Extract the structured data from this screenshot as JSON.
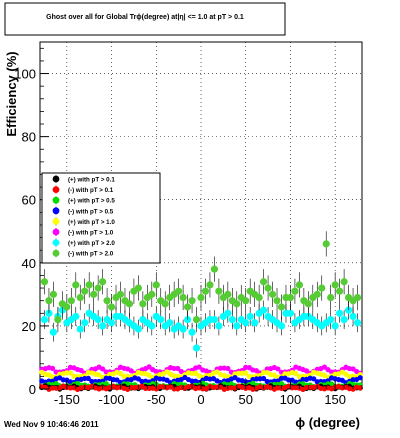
{
  "chart_data": {
    "type": "scatter",
    "title": "Ghost over all for Global Trϕ(degree) at|η| <= 1.0 at pT > 0.1",
    "xlabel": "ϕ (degree)",
    "ylabel": "Efficiency (%)",
    "xlim": [
      -180,
      180
    ],
    "ylim": [
      0,
      110
    ],
    "xticks": [
      -150,
      -100,
      -50,
      0,
      50,
      100,
      150
    ],
    "xtick_labels": [
      "-150",
      "-100",
      "-50",
      "0",
      "50",
      "100",
      "150"
    ],
    "yticks": [
      0,
      20,
      40,
      60,
      80,
      100
    ],
    "ytick_labels": [
      "0",
      "20",
      "40",
      "60",
      "80",
      "100"
    ],
    "grid": true,
    "legend_position": "middle-left",
    "series": [
      {
        "name": "(+) with pT > 0.1",
        "color": "#000000"
      },
      {
        "name": "(-) with pT > 0.1",
        "color": "#ff0000"
      },
      {
        "name": "(+) with pT > 0.5",
        "color": "#00dd00"
      },
      {
        "name": "(-) with pT > 0.5",
        "color": "#0000ff"
      },
      {
        "name": "(+) with pT > 1.0",
        "color": "#ffff00"
      },
      {
        "name": "(-) with pT > 1.0",
        "color": "#ff00ff"
      },
      {
        "name": "(+) with pT > 2.0",
        "color": "#00ffff"
      },
      {
        "name": "(-) with pT > 2.0",
        "color": "#55cc33"
      }
    ],
    "bands": [
      {
        "series": 5,
        "base": 6.0,
        "amp": 0.8
      },
      {
        "series": 4,
        "base": 4.5,
        "amp": 0.7
      },
      {
        "series": 3,
        "base": 2.8,
        "amp": 0.6
      },
      {
        "series": 2,
        "base": 1.2,
        "amp": 0.4
      },
      {
        "series": 0,
        "base": 0.5,
        "amp": 0.3
      },
      {
        "series": 1,
        "base": 0.4,
        "amp": 0.3
      }
    ],
    "cyan_x": [
      -175,
      -170,
      -165,
      -160,
      -155,
      -150,
      -145,
      -140,
      -135,
      -130,
      -125,
      -120,
      -115,
      -110,
      -105,
      -100,
      -95,
      -90,
      -85,
      -80,
      -75,
      -70,
      -65,
      -60,
      -55,
      -50,
      -45,
      -40,
      -35,
      -30,
      -25,
      -20,
      -15,
      -10,
      -5,
      0,
      5,
      10,
      15,
      20,
      25,
      30,
      35,
      40,
      45,
      50,
      55,
      60,
      65,
      70,
      75,
      80,
      85,
      90,
      95,
      100,
      105,
      110,
      115,
      120,
      125,
      130,
      135,
      140,
      145,
      150,
      155,
      160,
      165,
      170,
      175
    ],
    "cyan_y": [
      22,
      24,
      18,
      23,
      25,
      21,
      22,
      23,
      19,
      21,
      24,
      23,
      22,
      20,
      22,
      21,
      23,
      23,
      22,
      21,
      20,
      19,
      22,
      21,
      20,
      23,
      22,
      20,
      21,
      19,
      20,
      19,
      22,
      18,
      13,
      20,
      21,
      22,
      22,
      20,
      23,
      24,
      22,
      20,
      22,
      21,
      23,
      21,
      24,
      25,
      23,
      22,
      21,
      20,
      24,
      24,
      21,
      22,
      23,
      23,
      22,
      21,
      20,
      21,
      22,
      20,
      24,
      22,
      25,
      23,
      21
    ],
    "green_x": [
      -175,
      -170,
      -165,
      -160,
      -155,
      -150,
      -145,
      -140,
      -135,
      -130,
      -125,
      -120,
      -115,
      -110,
      -105,
      -100,
      -95,
      -90,
      -85,
      -80,
      -75,
      -70,
      -65,
      -60,
      -55,
      -50,
      -45,
      -40,
      -35,
      -30,
      -25,
      -20,
      -15,
      -10,
      -5,
      0,
      5,
      10,
      15,
      20,
      25,
      30,
      35,
      40,
      45,
      50,
      55,
      60,
      65,
      70,
      75,
      80,
      85,
      90,
      95,
      100,
      105,
      110,
      115,
      120,
      125,
      130,
      135,
      140,
      145,
      150,
      155,
      160,
      165,
      170,
      175
    ],
    "green_y": [
      34,
      28,
      30,
      22,
      27,
      26,
      28,
      33,
      29,
      31,
      33,
      30,
      32,
      34,
      28,
      26,
      29,
      30,
      28,
      27,
      31,
      32,
      27,
      29,
      30,
      33,
      28,
      27,
      29,
      30,
      31,
      29,
      26,
      28,
      22,
      29,
      31,
      33,
      38,
      31,
      29,
      30,
      28,
      27,
      29,
      28,
      31,
      30,
      29,
      34,
      32,
      30,
      28,
      26,
      29,
      29,
      31,
      33,
      28,
      27,
      29,
      30,
      32,
      46,
      29,
      33,
      31,
      34,
      29,
      28,
      29
    ]
  },
  "footer": {
    "timestamp": "Wed Nov  9 10:46:46 2011"
  }
}
